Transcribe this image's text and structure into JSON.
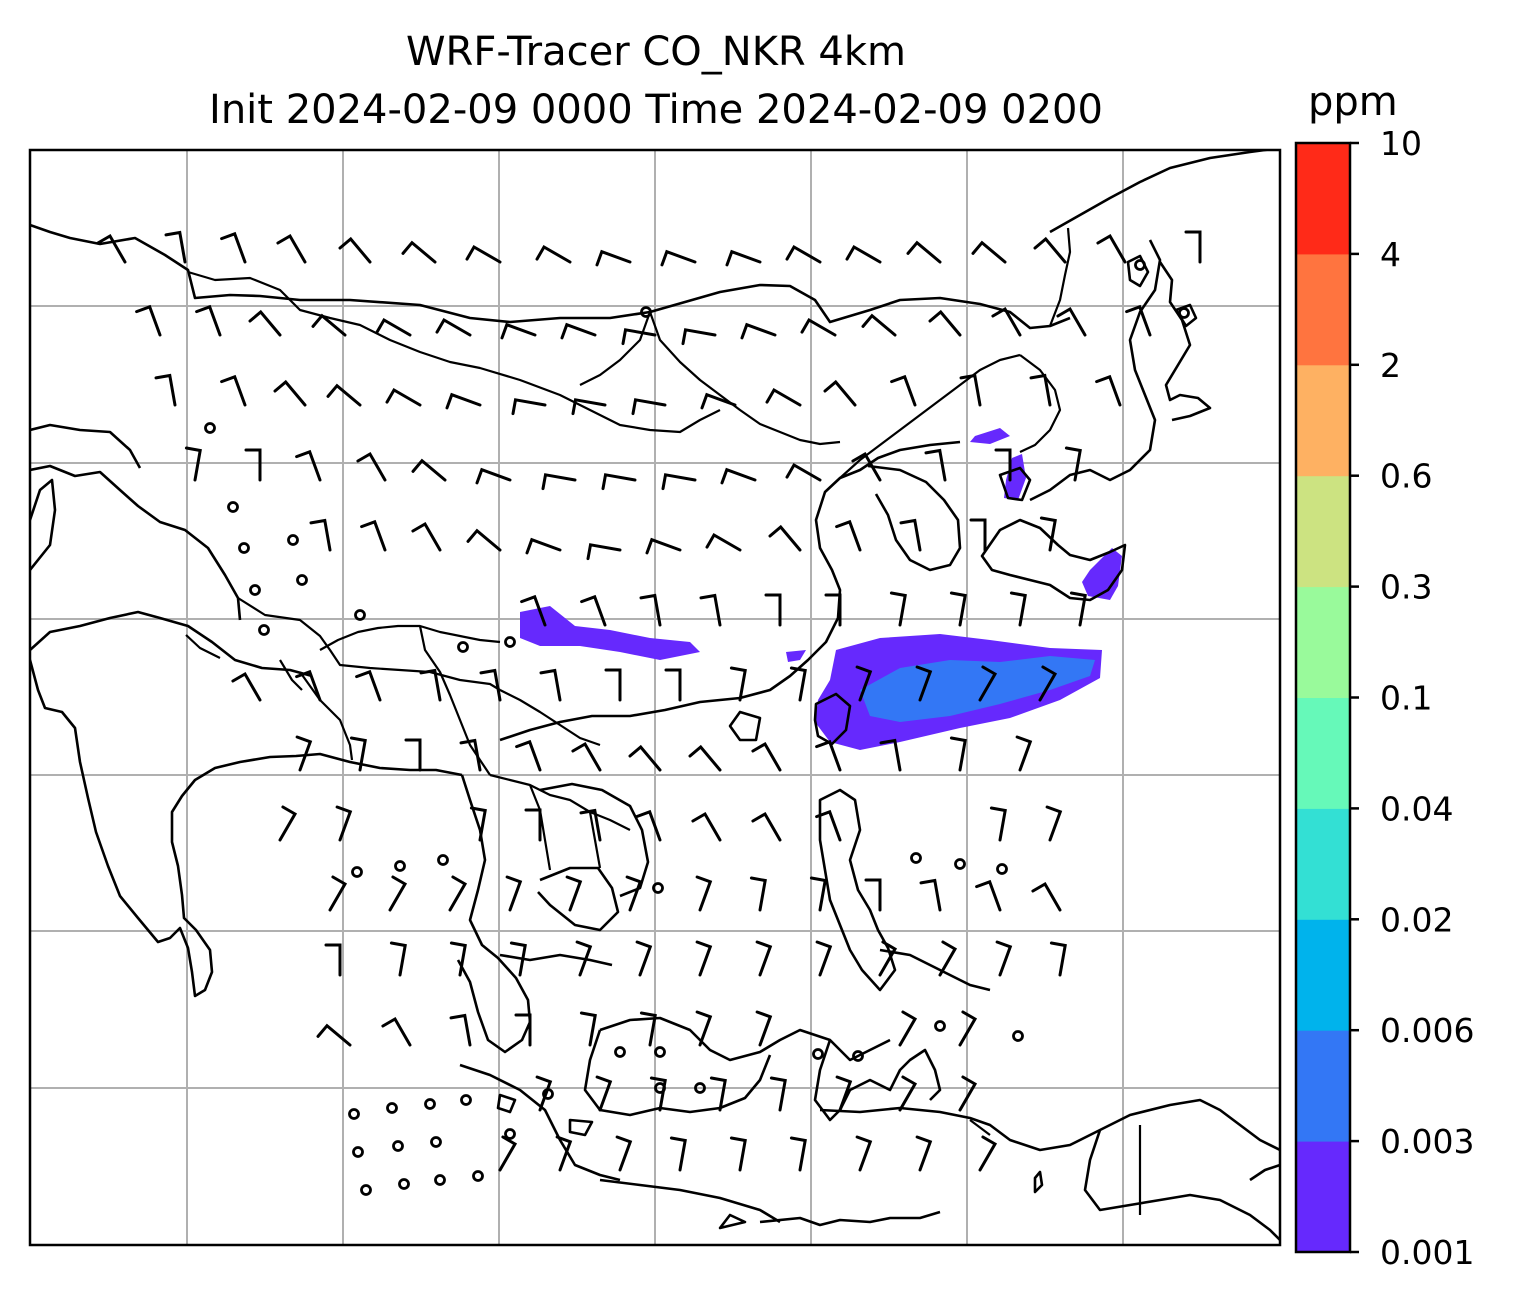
{
  "title": {
    "line1": "WRF-Tracer CO_NKR 4km",
    "line2": "Init 2024-02-09 0000 Time 2024-02-09 0200"
  },
  "colorbar": {
    "unit": "ppm",
    "levels": [
      "0.001",
      "0.003",
      "0.006",
      "0.02",
      "0.04",
      "0.1",
      "0.3",
      "0.6",
      "2",
      "4",
      "10"
    ],
    "colors": [
      "#6629fd",
      "#3377f5",
      "#00b3ec",
      "#33e0d4",
      "#66f9b9",
      "#99fa9b",
      "#cce381",
      "#feb162",
      "#ff743f",
      "#ff2a18"
    ]
  },
  "map": {
    "gridlines": true,
    "features": [
      "coastlines",
      "country-borders",
      "wind-barbs",
      "calm-circles",
      "tracer-plume"
    ]
  }
}
